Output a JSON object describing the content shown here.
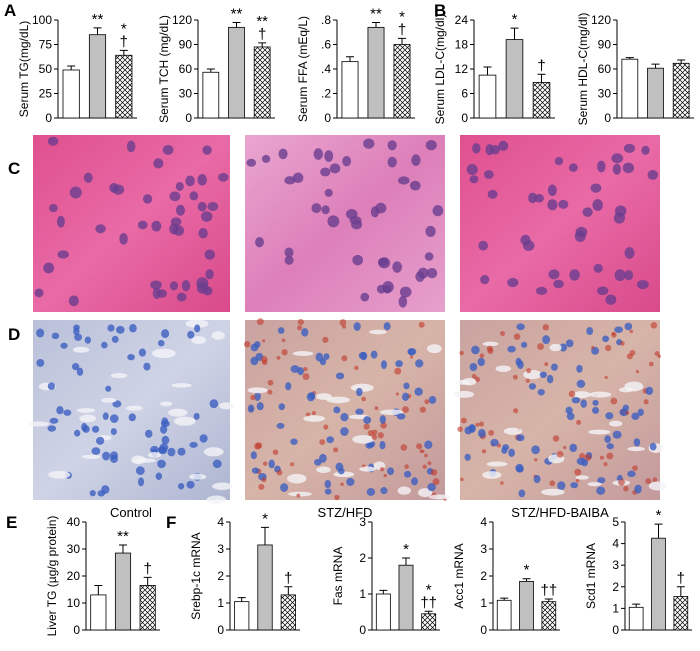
{
  "panels": [
    "A",
    "B",
    "C",
    "D",
    "E",
    "F"
  ],
  "groups": [
    "Control",
    "STZ/HFD",
    "STZ/HFD-BAIBA"
  ],
  "bar_colors": [
    "#ffffff",
    "#c0c0c0",
    "#ffffff"
  ],
  "bar_hatch": [
    false,
    false,
    true
  ],
  "chart_data": [
    {
      "type": "bar",
      "ylabel": "Serum TG(mg/dL)",
      "values": [
        49,
        85,
        64
      ],
      "errors": [
        4,
        7,
        5
      ],
      "ylim": [
        0,
        100
      ],
      "yticks": [
        0,
        25,
        50,
        75,
        100
      ],
      "annotations": [
        null,
        [
          "**"
        ],
        [
          "*",
          "†"
        ]
      ]
    },
    {
      "type": "bar",
      "ylabel": "Serum TCH (mg/dL)",
      "values": [
        56,
        111,
        87
      ],
      "errors": [
        4,
        6,
        5
      ],
      "ylim": [
        0,
        120
      ],
      "yticks": [
        0,
        30,
        60,
        90,
        120
      ],
      "annotations": [
        null,
        [
          "**"
        ],
        [
          "**",
          "†"
        ]
      ]
    },
    {
      "type": "bar",
      "ylabel": "Serum FFA (mEq/L)",
      "values": [
        0.46,
        0.74,
        0.6
      ],
      "errors": [
        0.04,
        0.04,
        0.05
      ],
      "ylim": [
        0,
        0.8
      ],
      "yticks": [
        0,
        {
          "value": 0.2,
          "label": ".2"
        },
        {
          "value": 0.4,
          "label": ".4"
        },
        {
          "value": 0.6,
          "label": ".6"
        },
        {
          "value": 0.8,
          "label": ".8"
        }
      ],
      "annotations": [
        null,
        [
          "**"
        ],
        [
          "*",
          "†"
        ]
      ]
    },
    {
      "type": "bar",
      "ylabel": "Serum LDL-C(mg/dl)",
      "values": [
        10.5,
        19.2,
        8.7
      ],
      "errors": [
        2,
        2.8,
        2
      ],
      "ylim": [
        0,
        24
      ],
      "yticks": [
        0,
        6,
        12,
        18,
        24
      ],
      "annotations": [
        null,
        [
          "*"
        ],
        [
          "†"
        ]
      ]
    },
    {
      "type": "bar",
      "ylabel": "Serum HDL-C(mg/dl)",
      "values": [
        72,
        61,
        67
      ],
      "errors": [
        2,
        5,
        4
      ],
      "ylim": [
        0,
        120
      ],
      "yticks": [
        0,
        30,
        60,
        90,
        120
      ],
      "annotations": [
        null,
        null,
        null
      ]
    },
    {
      "type": "bar",
      "ylabel": "Liver TG (µg/g protein)",
      "values": [
        13,
        28.5,
        16.5
      ],
      "errors": [
        3.5,
        3,
        3
      ],
      "ylim": [
        0,
        40
      ],
      "yticks": [
        0,
        10,
        20,
        30,
        40
      ],
      "annotations": [
        null,
        [
          "**"
        ],
        [
          "†"
        ]
      ]
    },
    {
      "type": "bar",
      "ylabel": "Srebp-1c mRNA",
      "values": [
        1.05,
        3.15,
        1.3
      ],
      "errors": [
        0.15,
        0.65,
        0.3
      ],
      "ylim": [
        0,
        4
      ],
      "yticks": [
        0,
        1,
        2,
        3,
        4
      ],
      "annotations": [
        null,
        [
          "*"
        ],
        [
          "†"
        ]
      ]
    },
    {
      "type": "bar",
      "ylabel": "Fas mRNA",
      "values": [
        1.0,
        1.8,
        0.45
      ],
      "errors": [
        0.1,
        0.2,
        0.07
      ],
      "ylim": [
        0,
        3
      ],
      "yticks": [
        0,
        1,
        2,
        3
      ],
      "annotations": [
        null,
        [
          "*"
        ],
        [
          "*",
          "††"
        ]
      ]
    },
    {
      "type": "bar",
      "ylabel": "Acc1 mRNA",
      "values": [
        1.1,
        1.8,
        1.05
      ],
      "errors": [
        0.08,
        0.1,
        0.1
      ],
      "ylim": [
        0,
        4
      ],
      "yticks": [
        0,
        1,
        2,
        3,
        4
      ],
      "annotations": [
        null,
        [
          "*"
        ],
        [
          "††"
        ]
      ]
    },
    {
      "type": "bar",
      "ylabel": "Scd1 mRNA",
      "values": [
        1.05,
        4.25,
        1.55
      ],
      "errors": [
        0.15,
        0.65,
        0.45
      ],
      "ylim": [
        0,
        5
      ],
      "yticks": [
        0,
        1,
        2,
        3,
        4,
        5
      ],
      "annotations": [
        null,
        [
          "*"
        ],
        [
          "†"
        ]
      ]
    }
  ]
}
